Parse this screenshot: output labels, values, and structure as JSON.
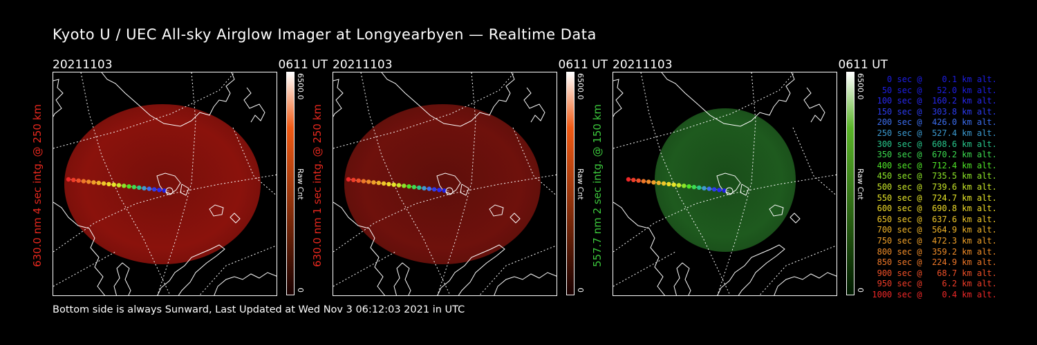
{
  "title": "Kyoto U / UEC All-sky Airglow Imager at Longyearbyen — Realtime Data",
  "footer": "Bottom side is always Sunward, Last Updated at Wed Nov  3 06:12:03 2021 in UTC",
  "panels": [
    {
      "date": "20211103",
      "time": "0611 UT",
      "ylabel": "630.0 nm 4 sec intg. @ 250 km",
      "label_color": "#e8281e",
      "cbar_max": "6500.0",
      "cbar_min": "0",
      "cbar_unit": "Raw Cnt",
      "glow_color": "#8a120c",
      "cbar_top": "#ffffff",
      "cbar_mid": "#f05a14",
      "cbar_bottom": "#1a0000"
    },
    {
      "date": "20211103",
      "time": "0611 UT",
      "ylabel": "630.0 nm 1 sec intg. @ 250 km",
      "label_color": "#e8281e",
      "cbar_max": "6500.0",
      "cbar_min": "0",
      "cbar_unit": "Raw Cnt",
      "glow_color": "#6e110c",
      "cbar_top": "#ffffff",
      "cbar_mid": "#f05a14",
      "cbar_bottom": "#1a0000"
    },
    {
      "date": "20211103",
      "time": "0611 UT",
      "ylabel": "557.7 nm 2 sec intg. @ 150 km",
      "label_color": "#3cc83c",
      "cbar_max": "6500.0",
      "cbar_min": "0",
      "cbar_unit": "Raw Cnt",
      "glow_color": "#1e5a1e",
      "cbar_top": "#ffffff",
      "cbar_mid": "#5ab428",
      "cbar_bottom": "#001a00"
    }
  ],
  "legend": [
    {
      "text": "   0 sec @    0.1 km alt.",
      "color": "#1e1ee6"
    },
    {
      "text": "  50 sec @   52.0 km alt.",
      "color": "#1e1ee6"
    },
    {
      "text": " 100 sec @  160.2 km alt.",
      "color": "#2828f0"
    },
    {
      "text": " 150 sec @  303.8 km alt.",
      "color": "#2c3cf0"
    },
    {
      "text": " 200 sec @  426.0 km alt.",
      "color": "#3c6ef0"
    },
    {
      "text": " 250 sec @  527.4 km alt.",
      "color": "#3c9bd2"
    },
    {
      "text": " 300 sec @  608.6 km alt.",
      "color": "#28c88c"
    },
    {
      "text": " 350 sec @  670.2 km alt.",
      "color": "#3cdc50"
    },
    {
      "text": " 400 sec @  712.4 km alt.",
      "color": "#50e628"
    },
    {
      "text": " 450 sec @  735.5 km alt.",
      "color": "#8ce628"
    },
    {
      "text": " 500 sec @  739.6 km alt.",
      "color": "#c8e628"
    },
    {
      "text": " 550 sec @  724.7 km alt.",
      "color": "#e6e628"
    },
    {
      "text": " 600 sec @  690.8 km alt.",
      "color": "#f0dc28"
    },
    {
      "text": " 650 sec @  637.6 km alt.",
      "color": "#f0c828"
    },
    {
      "text": " 700 sec @  564.9 km alt.",
      "color": "#f0b428"
    },
    {
      "text": " 750 sec @  472.3 km alt.",
      "color": "#f0a028"
    },
    {
      "text": " 800 sec @  359.2 km alt.",
      "color": "#f08c28"
    },
    {
      "text": " 850 sec @  224.9 km alt.",
      "color": "#f07828"
    },
    {
      "text": " 900 sec @   68.7 km alt.",
      "color": "#f05028"
    },
    {
      "text": " 950 sec @    6.2 km alt.",
      "color": "#f03c28"
    },
    {
      "text": "1000 sec @    0.4 km alt.",
      "color": "#f02828"
    }
  ]
}
